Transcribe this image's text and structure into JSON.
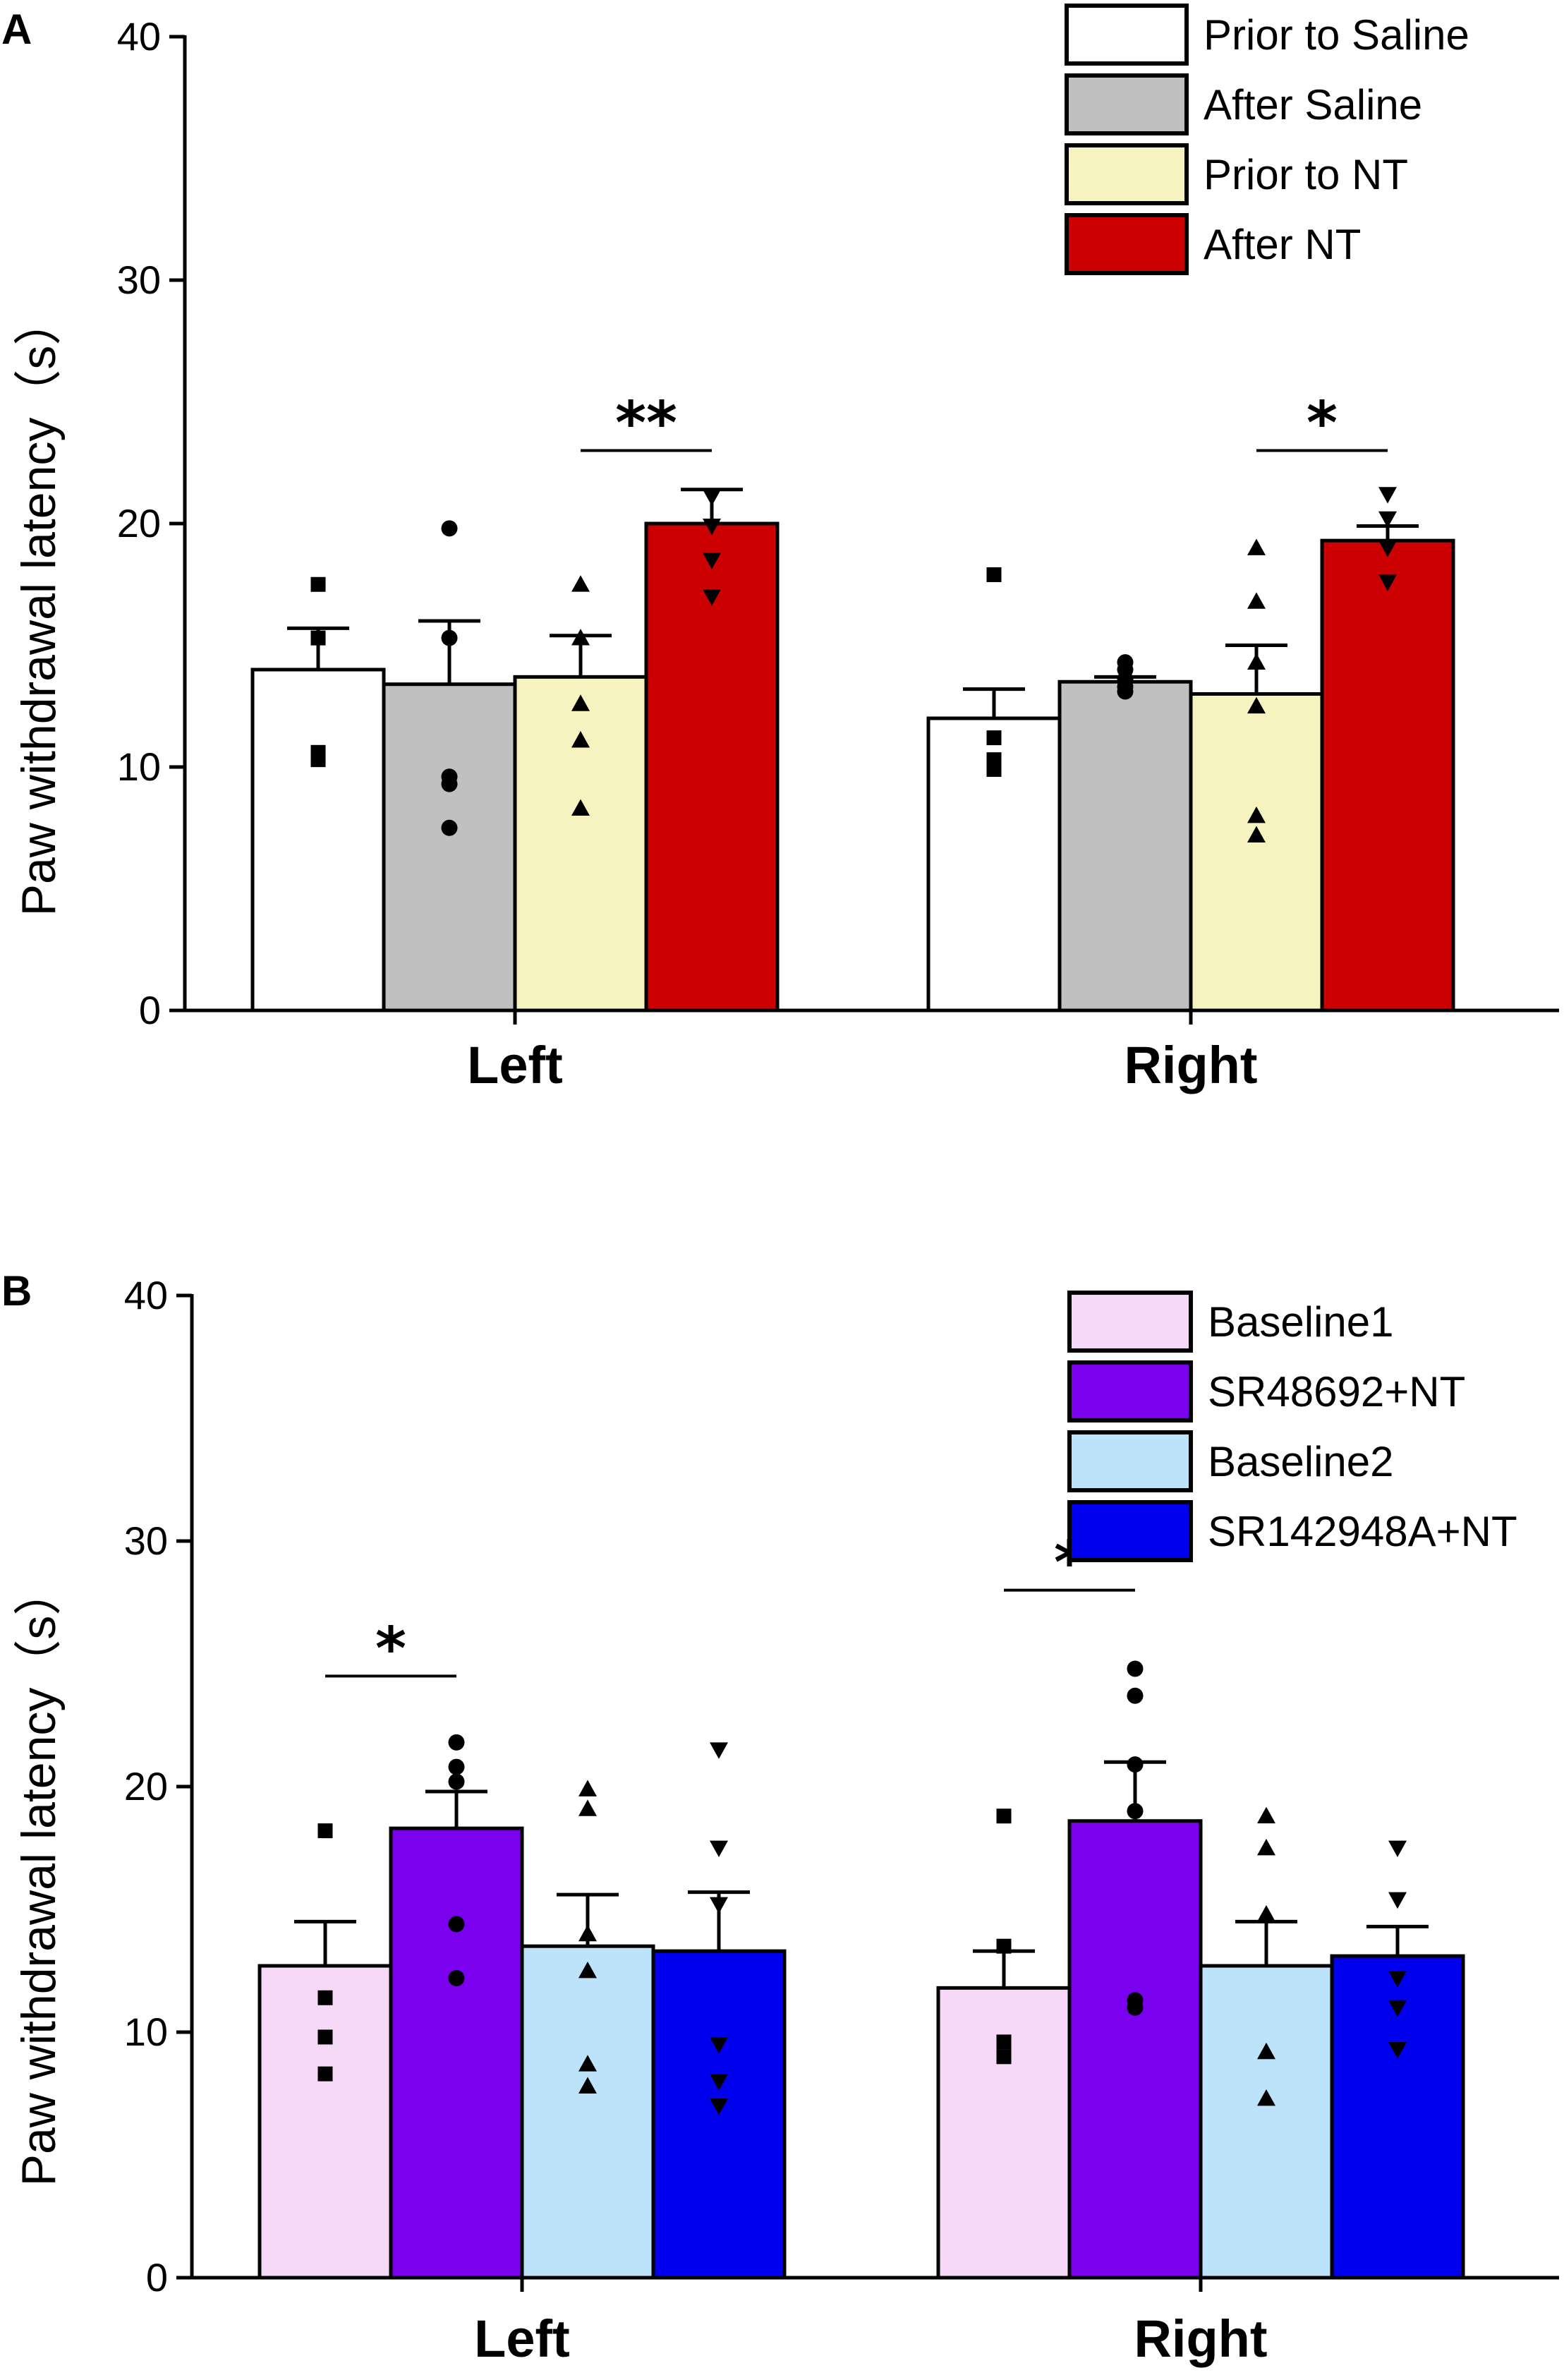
{
  "chart_data": [
    {
      "panel": "A",
      "type": "bar",
      "ylabel": "Paw withdrawal latency（s）",
      "ylim": [
        0,
        40
      ],
      "yticks": [
        0,
        10,
        20,
        30,
        40
      ],
      "categories": [
        "Left",
        "Right"
      ],
      "series": [
        {
          "name": "Prior to Saline",
          "color": "#ffffff",
          "marker": "square",
          "values": [
            14.0,
            12.0
          ],
          "sem": [
            1.7,
            1.2
          ],
          "points": [
            [
              17.5,
              15.3,
              10.6,
              10.3
            ],
            [
              17.9,
              11.2,
              10.3,
              9.9
            ]
          ]
        },
        {
          "name": "After Saline",
          "color": "#c0c0c0",
          "marker": "circle",
          "values": [
            13.4,
            13.5
          ],
          "sem": [
            2.6,
            0.2
          ],
          "points": [
            [
              19.8,
              15.3,
              9.6,
              9.3,
              7.5
            ],
            [
              14.3,
              14.0,
              13.6,
              13.3,
              13.1
            ]
          ]
        },
        {
          "name": "Prior to NT",
          "color": "#f6f3c0",
          "marker": "triangle-up",
          "values": [
            13.7,
            13.0
          ],
          "sem": [
            1.7,
            2.0
          ],
          "points": [
            [
              17.5,
              15.3,
              12.6,
              11.1,
              8.3
            ],
            [
              19.0,
              16.8,
              14.3,
              12.5,
              8.0,
              7.2
            ]
          ]
        },
        {
          "name": "After NT",
          "color": "#cc0000",
          "marker": "triangle-down",
          "values": [
            20.0,
            19.3
          ],
          "sem": [
            1.4,
            0.6
          ],
          "points": [
            [
              21.1,
              19.9,
              18.5,
              17.0
            ],
            [
              21.2,
              20.2,
              19.0,
              17.6
            ]
          ]
        }
      ],
      "significance": [
        {
          "category": "Left",
          "label": "**",
          "from_series": 2,
          "to_series": 3,
          "y": 23.0
        },
        {
          "category": "Right",
          "label": "*",
          "from_series": 2,
          "to_series": 3,
          "y": 23.0
        }
      ],
      "legend": "top-right"
    },
    {
      "panel": "B",
      "type": "bar",
      "ylabel": "Paw withdrawal latency（s）",
      "ylim": [
        0,
        40
      ],
      "yticks": [
        0,
        10,
        20,
        30,
        40
      ],
      "categories": [
        "Left",
        "Right"
      ],
      "series": [
        {
          "name": "Baseline1",
          "color": "#f5d9f7",
          "marker": "square",
          "values": [
            12.7,
            11.8
          ],
          "sem": [
            1.8,
            1.5
          ],
          "points": [
            [
              18.2,
              11.4,
              9.8,
              8.3
            ],
            [
              18.8,
              13.5,
              9.6,
              9.0
            ]
          ]
        },
        {
          "name": "SR48692+NT",
          "color": "#7a00ee",
          "marker": "circle",
          "values": [
            18.3,
            18.6
          ],
          "sem": [
            1.5,
            2.4
          ],
          "points": [
            [
              21.8,
              20.8,
              20.2,
              14.4,
              12.2
            ],
            [
              24.8,
              23.7,
              20.9,
              19.0,
              11.3,
              11.0
            ]
          ]
        },
        {
          "name": "Baseline2",
          "color": "#bde3fa",
          "marker": "triangle-up",
          "values": [
            13.5,
            12.7
          ],
          "sem": [
            2.1,
            1.8
          ],
          "points": [
            [
              19.9,
              19.1,
              14.0,
              12.5,
              8.7,
              7.8
            ],
            [
              18.8,
              17.5,
              14.8,
              9.2,
              7.3
            ]
          ]
        },
        {
          "name": "SR142948A+NT",
          "color": "#0000ee",
          "marker": "triangle-down",
          "values": [
            13.3,
            13.1
          ],
          "sem": [
            2.4,
            1.2
          ],
          "points": [
            [
              21.5,
              17.5,
              15.2,
              9.5,
              8.0,
              7.0
            ],
            [
              17.5,
              15.4,
              12.2,
              11.0,
              9.3
            ]
          ]
        }
      ],
      "significance": [
        {
          "category": "Left",
          "label": "*",
          "from_series": 0,
          "to_series": 1,
          "y": 24.5
        },
        {
          "category": "Right",
          "label": "*",
          "from_series": 0,
          "to_series": 1,
          "y": 28.0
        }
      ],
      "legend": "top-right"
    }
  ]
}
